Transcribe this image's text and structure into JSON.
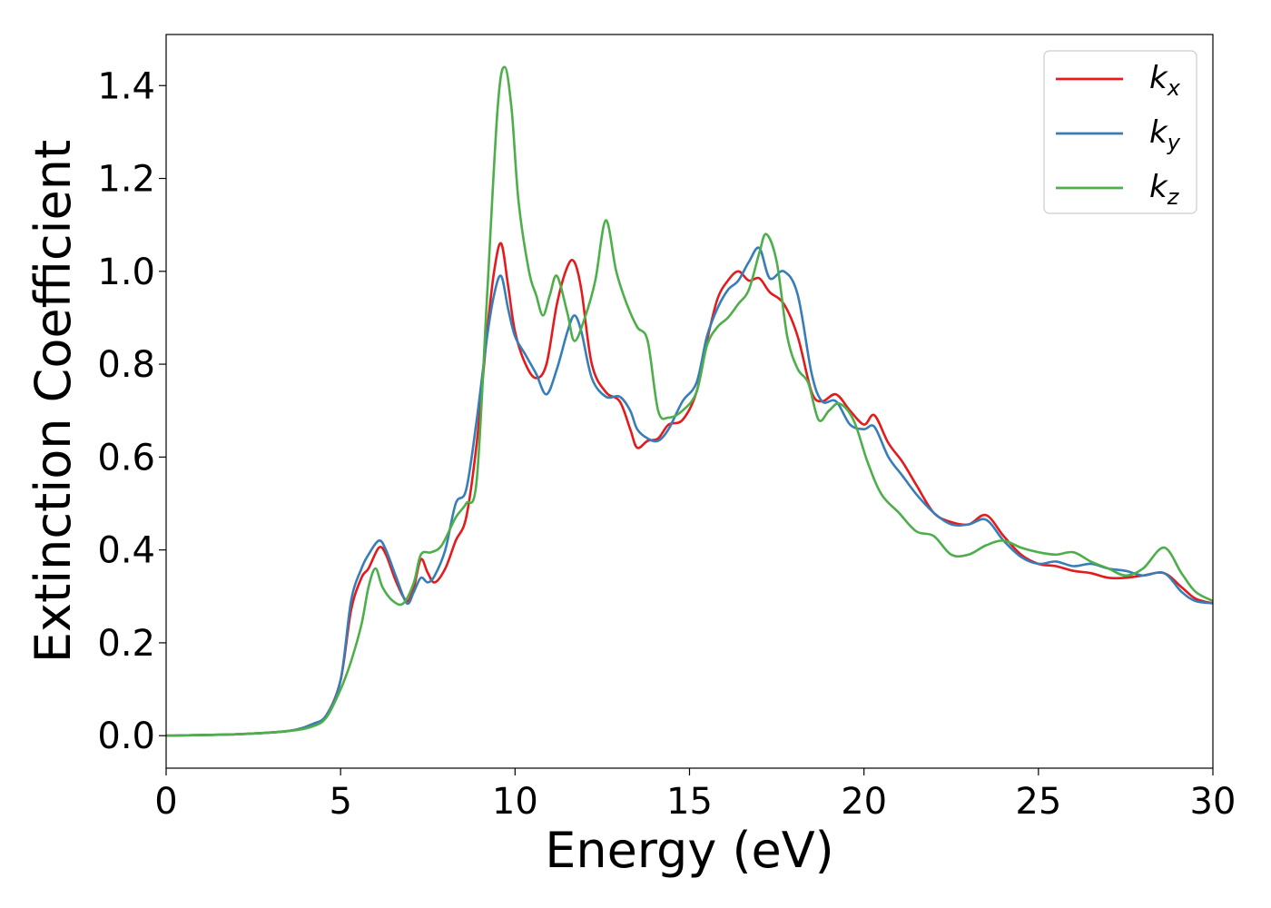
{
  "chart_data": {
    "type": "line",
    "xlabel": "Energy (eV)",
    "ylabel": "Extinction Coefficient",
    "xlim": [
      0,
      30
    ],
    "ylim": [
      -0.07,
      1.51
    ],
    "xticks": [
      0,
      5,
      10,
      15,
      20,
      25,
      30
    ],
    "xtick_labels": [
      "0",
      "5",
      "10",
      "15",
      "20",
      "25",
      "30"
    ],
    "yticks": [
      0.0,
      0.2,
      0.4,
      0.6,
      0.8,
      1.0,
      1.2,
      1.4
    ],
    "ytick_labels": [
      "0.0",
      "0.2",
      "0.4",
      "0.6",
      "0.8",
      "1.0",
      "1.2",
      "1.4"
    ],
    "grid": false,
    "legend_position": "top-right",
    "series": [
      {
        "name": "k",
        "subscript": "x",
        "color": "#e41a1c",
        "x": [
          0,
          2,
          3.5,
          4.2,
          4.6,
          5.0,
          5.3,
          5.6,
          5.8,
          6.1,
          6.3,
          6.6,
          6.9,
          7.1,
          7.3,
          7.5,
          7.7,
          8.0,
          8.3,
          8.6,
          8.9,
          9.2,
          9.4,
          9.6,
          9.8,
          10.0,
          10.3,
          10.6,
          10.9,
          11.2,
          11.5,
          11.7,
          11.9,
          12.2,
          12.6,
          13.0,
          13.3,
          13.5,
          13.8,
          14.1,
          14.4,
          14.8,
          15.2,
          15.5,
          15.8,
          16.1,
          16.4,
          16.7,
          17.0,
          17.3,
          17.7,
          18.1,
          18.5,
          18.8,
          19.2,
          19.6,
          20.0,
          20.3,
          20.7,
          21.1,
          21.5,
          22.0,
          22.5,
          23.0,
          23.5,
          24.0,
          24.5,
          25.0,
          25.5,
          26.0,
          26.5,
          27.0,
          27.5,
          28.0,
          28.6,
          29.1,
          29.5,
          30
        ],
        "y": [
          0.0,
          0.003,
          0.01,
          0.025,
          0.045,
          0.12,
          0.27,
          0.34,
          0.36,
          0.405,
          0.39,
          0.33,
          0.29,
          0.32,
          0.38,
          0.35,
          0.33,
          0.36,
          0.42,
          0.47,
          0.63,
          0.87,
          1.0,
          1.06,
          0.97,
          0.87,
          0.8,
          0.77,
          0.8,
          0.93,
          1.01,
          1.02,
          0.96,
          0.8,
          0.74,
          0.72,
          0.66,
          0.62,
          0.635,
          0.64,
          0.67,
          0.68,
          0.74,
          0.85,
          0.94,
          0.98,
          1.0,
          0.98,
          0.985,
          0.955,
          0.93,
          0.86,
          0.74,
          0.72,
          0.735,
          0.7,
          0.67,
          0.69,
          0.63,
          0.59,
          0.54,
          0.48,
          0.46,
          0.455,
          0.475,
          0.43,
          0.39,
          0.37,
          0.365,
          0.355,
          0.35,
          0.34,
          0.34,
          0.345,
          0.35,
          0.32,
          0.295,
          0.285
        ]
      },
      {
        "name": "k",
        "subscript": "y",
        "color": "#377eb8",
        "x": [
          0,
          2,
          3.5,
          4.2,
          4.6,
          5.0,
          5.3,
          5.6,
          5.8,
          6.1,
          6.3,
          6.6,
          6.9,
          7.1,
          7.3,
          7.5,
          7.7,
          8.0,
          8.3,
          8.6,
          8.9,
          9.2,
          9.4,
          9.6,
          9.8,
          10.0,
          10.3,
          10.6,
          10.9,
          11.2,
          11.5,
          11.7,
          11.9,
          12.2,
          12.6,
          13.0,
          13.3,
          13.5,
          13.8,
          14.1,
          14.4,
          14.8,
          15.2,
          15.5,
          15.8,
          16.1,
          16.4,
          16.7,
          17.0,
          17.3,
          17.7,
          18.1,
          18.5,
          18.8,
          19.2,
          19.6,
          20.0,
          20.3,
          20.7,
          21.1,
          21.5,
          22.0,
          22.5,
          23.0,
          23.5,
          24.0,
          24.5,
          25.0,
          25.5,
          26.0,
          26.5,
          27.0,
          27.5,
          28.0,
          28.6,
          29.1,
          29.5,
          30
        ],
        "y": [
          0.0,
          0.003,
          0.01,
          0.025,
          0.045,
          0.12,
          0.29,
          0.36,
          0.39,
          0.42,
          0.4,
          0.34,
          0.285,
          0.31,
          0.34,
          0.33,
          0.345,
          0.4,
          0.5,
          0.53,
          0.68,
          0.86,
          0.95,
          0.99,
          0.92,
          0.86,
          0.82,
          0.78,
          0.735,
          0.79,
          0.87,
          0.905,
          0.87,
          0.77,
          0.73,
          0.73,
          0.7,
          0.66,
          0.64,
          0.635,
          0.66,
          0.72,
          0.76,
          0.86,
          0.92,
          0.96,
          0.98,
          1.02,
          1.05,
          0.985,
          1.0,
          0.95,
          0.78,
          0.72,
          0.72,
          0.67,
          0.66,
          0.665,
          0.6,
          0.56,
          0.52,
          0.48,
          0.455,
          0.455,
          0.465,
          0.42,
          0.385,
          0.37,
          0.375,
          0.365,
          0.37,
          0.36,
          0.355,
          0.345,
          0.35,
          0.31,
          0.29,
          0.285
        ]
      },
      {
        "name": "k",
        "subscript": "z",
        "color": "#4daf4a",
        "x": [
          0,
          2,
          3.5,
          4.2,
          4.6,
          5.0,
          5.3,
          5.6,
          5.8,
          6.0,
          6.2,
          6.5,
          6.8,
          7.1,
          7.3,
          7.6,
          7.9,
          8.3,
          8.6,
          8.9,
          9.2,
          9.5,
          9.7,
          9.9,
          10.1,
          10.4,
          10.6,
          10.8,
          11.0,
          11.2,
          11.5,
          11.7,
          12.0,
          12.3,
          12.6,
          12.9,
          13.2,
          13.5,
          13.8,
          14.1,
          14.4,
          14.8,
          15.2,
          15.5,
          15.8,
          16.1,
          16.4,
          16.7,
          17.0,
          17.2,
          17.5,
          17.8,
          18.1,
          18.4,
          18.7,
          19.0,
          19.3,
          19.7,
          20.1,
          20.5,
          21.0,
          21.5,
          22.0,
          22.5,
          23.0,
          23.5,
          24.0,
          24.5,
          25.0,
          25.5,
          26.0,
          26.5,
          27.0,
          27.5,
          28.0,
          28.6,
          29.1,
          29.5,
          30
        ],
        "y": [
          0.0,
          0.003,
          0.01,
          0.02,
          0.04,
          0.1,
          0.16,
          0.24,
          0.32,
          0.36,
          0.32,
          0.29,
          0.285,
          0.33,
          0.39,
          0.395,
          0.41,
          0.47,
          0.5,
          0.55,
          0.95,
          1.35,
          1.44,
          1.35,
          1.15,
          1.0,
          0.95,
          0.905,
          0.95,
          0.99,
          0.91,
          0.85,
          0.9,
          0.98,
          1.11,
          1.0,
          0.93,
          0.88,
          0.85,
          0.7,
          0.685,
          0.7,
          0.74,
          0.84,
          0.88,
          0.9,
          0.93,
          0.96,
          1.04,
          1.08,
          1.02,
          0.86,
          0.79,
          0.76,
          0.68,
          0.7,
          0.715,
          0.68,
          0.59,
          0.52,
          0.48,
          0.44,
          0.43,
          0.39,
          0.39,
          0.41,
          0.42,
          0.405,
          0.395,
          0.39,
          0.395,
          0.375,
          0.36,
          0.345,
          0.36,
          0.405,
          0.35,
          0.31,
          0.29
        ]
      }
    ]
  }
}
